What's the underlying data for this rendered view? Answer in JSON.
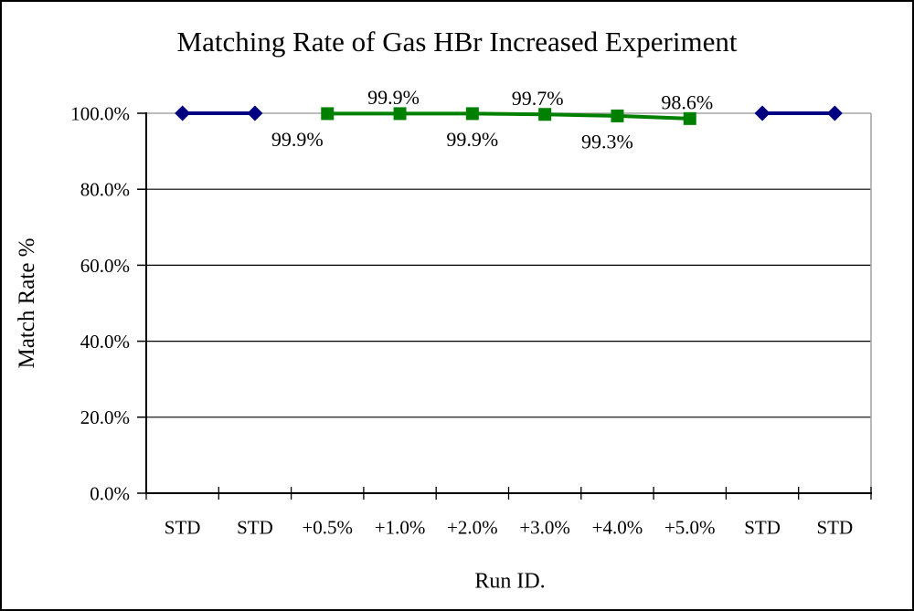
{
  "page": {
    "background": "#ffffff",
    "border_color": "#000000"
  },
  "chart_data": {
    "type": "line",
    "title": "Matching Rate of Gas HBr Increased Experiment",
    "xlabel": "Run ID.",
    "ylabel": "Match Rate %",
    "categories": [
      "STD",
      "STD",
      "+0.5%",
      "+1.0%",
      "+2.0%",
      "+3.0%",
      "+4.0%",
      "+5.0%",
      "STD",
      "STD"
    ],
    "y_ticks": [
      {
        "value": 0,
        "label": "0.0%"
      },
      {
        "value": 20,
        "label": "20.0%"
      },
      {
        "value": 40,
        "label": "40.0%"
      },
      {
        "value": 60,
        "label": "60.0%"
      },
      {
        "value": 80,
        "label": "80.0%"
      },
      {
        "value": 100,
        "label": "100.0%"
      }
    ],
    "ylim": [
      0,
      100
    ],
    "grid": true,
    "legend_position": "none",
    "series": [
      {
        "id": "std_runs",
        "marker": "diamond",
        "color": "#000080",
        "values": [
          100.0,
          100.0,
          null,
          null,
          null,
          null,
          null,
          null,
          100.0,
          100.0
        ],
        "data_labels": []
      },
      {
        "id": "hbr_increased_runs",
        "marker": "square",
        "color": "#008000",
        "values": [
          null,
          null,
          99.9,
          99.9,
          99.9,
          99.7,
          99.3,
          98.6,
          null,
          null
        ],
        "data_labels": [
          {
            "index": 2,
            "text": "99.9%",
            "position": "below",
            "dx": -33
          },
          {
            "index": 3,
            "text": "99.9%",
            "position": "above",
            "dx": -7
          },
          {
            "index": 4,
            "text": "99.9%",
            "position": "below",
            "dx": 0
          },
          {
            "index": 5,
            "text": "99.7%",
            "position": "above",
            "dx": -8
          },
          {
            "index": 6,
            "text": "99.3%",
            "position": "below",
            "dx": -11
          },
          {
            "index": 7,
            "text": "98.6%",
            "position": "above",
            "dx": -3
          }
        ]
      }
    ],
    "colors": {
      "gridline": "#000000",
      "axis": "#000000",
      "top_border": "#a6a6a6",
      "right_border": "#a6a6a6"
    }
  }
}
